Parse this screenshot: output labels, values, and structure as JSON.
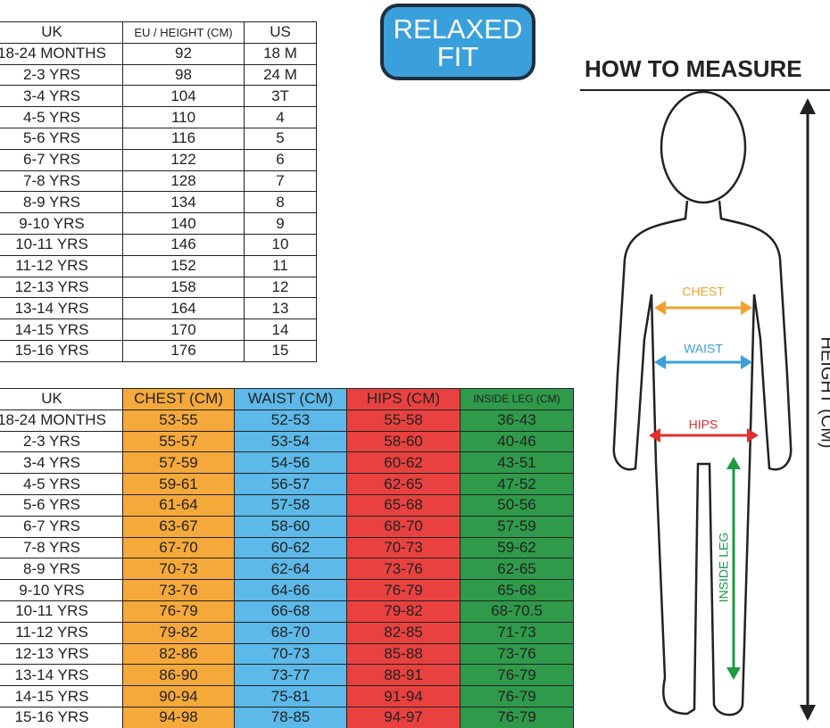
{
  "size_table": {
    "header": [
      "UK",
      "EU / HEIGHT (CM)",
      "US"
    ],
    "rows": [
      [
        "18-24 MONTHS",
        "92",
        "18 M"
      ],
      [
        "2-3 YRS",
        "98",
        "24 M"
      ],
      [
        "3-4 YRS",
        "104",
        "3T"
      ],
      [
        "4-5 YRS",
        "110",
        "4"
      ],
      [
        "5-6 YRS",
        "116",
        "5"
      ],
      [
        "6-7 YRS",
        "122",
        "6"
      ],
      [
        "7-8 YRS",
        "128",
        "7"
      ],
      [
        "8-9 YRS",
        "134",
        "8"
      ],
      [
        "9-10 YRS",
        "140",
        "9"
      ],
      [
        "10-11 YRS",
        "146",
        "10"
      ],
      [
        "11-12 YRS",
        "152",
        "11"
      ],
      [
        "12-13 YRS",
        "158",
        "12"
      ],
      [
        "13-14 YRS",
        "164",
        "13"
      ],
      [
        "14-15 YRS",
        "170",
        "14"
      ],
      [
        "15-16 YRS",
        "176",
        "15"
      ]
    ]
  },
  "badge": {
    "lines": [
      "RELAXED",
      "FIT"
    ]
  },
  "measure_table": {
    "header": [
      "UK",
      "CHEST (CM)",
      "WAIST (CM)",
      "HIPS (CM)",
      "INSIDE LEG (CM)"
    ],
    "rows": [
      [
        "18-24 MONTHS",
        "53-55",
        "52-53",
        "55-58",
        "36-43"
      ],
      [
        "2-3 YRS",
        "55-57",
        "53-54",
        "58-60",
        "40-46"
      ],
      [
        "3-4 YRS",
        "57-59",
        "54-56",
        "60-62",
        "43-51"
      ],
      [
        "4-5 YRS",
        "59-61",
        "56-57",
        "62-65",
        "47-52"
      ],
      [
        "5-6 YRS",
        "61-64",
        "57-58",
        "65-68",
        "50-56"
      ],
      [
        "6-7 YRS",
        "63-67",
        "58-60",
        "68-70",
        "57-59"
      ],
      [
        "7-8 YRS",
        "67-70",
        "60-62",
        "70-73",
        "59-62"
      ],
      [
        "8-9 YRS",
        "70-73",
        "62-64",
        "73-76",
        "62-65"
      ],
      [
        "9-10 YRS",
        "73-76",
        "64-66",
        "76-79",
        "65-68"
      ],
      [
        "10-11 YRS",
        "76-79",
        "66-68",
        "79-82",
        "68-70.5"
      ],
      [
        "11-12 YRS",
        "79-82",
        "68-70",
        "82-85",
        "71-73"
      ],
      [
        "12-13 YRS",
        "82-86",
        "70-73",
        "85-88",
        "73-76"
      ],
      [
        "13-14 YRS",
        "86-90",
        "73-77",
        "88-91",
        "76-79"
      ],
      [
        "14-15 YRS",
        "90-94",
        "75-81",
        "91-94",
        "76-79"
      ],
      [
        "15-16 YRS",
        "94-98",
        "78-85",
        "94-97",
        "76-79"
      ]
    ]
  },
  "diagram": {
    "title": "HOW TO MEASURE",
    "chest": "CHEST",
    "waist": "WAIST",
    "hips": "HIPS",
    "inside_leg": "INSIDE LEG",
    "height": "HEIGHT (CM)"
  }
}
